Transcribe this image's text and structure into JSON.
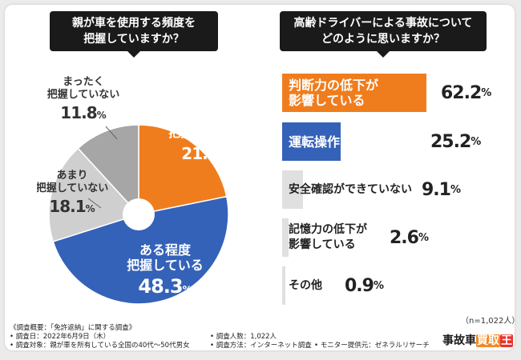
{
  "left_chart": {
    "title": "親が車を使用する頻度を\n把握していますか？",
    "chart_data": {
      "type": "pie",
      "labels": [
        "しっかりと把握している",
        "ある程度把握している",
        "あまり把握していない",
        "まったく把握していない"
      ],
      "values": [
        21.8,
        48.3,
        18.1,
        11.8
      ],
      "unit": "%",
      "colors": [
        "#f07d1d",
        "#3462b8",
        "#cfcfcf",
        "#a6a6a6"
      ]
    },
    "slice_labels": [
      {
        "text": "しっかりと\n把握している",
        "value": "21.8",
        "unit": "%"
      },
      {
        "text": "ある程度\n把握している",
        "value": "48.3",
        "unit": "%"
      },
      {
        "text": "あまり\n把握していない",
        "value": "18.1",
        "unit": "%"
      },
      {
        "text": "まったく\n把握していない",
        "value": "11.8",
        "unit": "%"
      }
    ]
  },
  "right_chart": {
    "title": "高齢ドライバーによる事故について\nどのように思いますか？",
    "chart_data": {
      "type": "bar",
      "orientation": "horizontal",
      "categories": [
        "判断力の低下が影響している",
        "運転操作ミスが多い",
        "安全確認ができていない",
        "記憶力の低下が影響している",
        "その他"
      ],
      "values": [
        62.2,
        25.2,
        9.1,
        2.6,
        0.9
      ],
      "unit": "%",
      "colors": [
        "#f07d1d",
        "#3462b8",
        "#e0e0e0",
        "#e0e0e0",
        "#e0e0e0"
      ]
    },
    "bar_labels": [
      {
        "text": "判断力の低下が\n影響している",
        "value": "62.2",
        "unit": "%"
      },
      {
        "text": "運転操作ミスが多い",
        "value": "25.2",
        "unit": "%"
      },
      {
        "text": "安全確認ができていない",
        "value": "9.1",
        "unit": "%"
      },
      {
        "text": "記憶力の低下が\n影響している",
        "value": "2.6",
        "unit": "%"
      },
      {
        "text": "その他",
        "value": "0.9",
        "unit": "%"
      }
    ],
    "sample_size": "（n=1,022人）"
  },
  "footer": {
    "overview": "《調査概要：「免許返納」に関する調査》",
    "date": "• 調査日：2022年6月9日（木）",
    "target": "• 調査対象：親が車を所有している全国の40代～50代男女",
    "people": "• 調査人数：1,022人",
    "method": "• 調査方法：インターネット調査",
    "provider": "• モニター提供元：ゼネラルリサーチ"
  },
  "logo": {
    "part1": "事故車",
    "part2": "買取",
    "part3": "王"
  }
}
